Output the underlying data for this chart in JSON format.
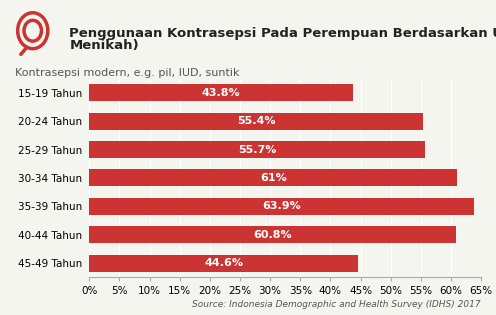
{
  "title_line1": "Penggunaan Kontrasepsi Pada Perempuan Berdasarkan Usia (Sudah",
  "title_line2": "Menikah)",
  "subtitle": "Kontrasepsi modern, e.g. pil, IUD, suntik",
  "source": "Source: Indonesia Demographic and Health Survey (IDHS) 2017",
  "categories": [
    "15-19 Tahun",
    "20-24 Tahun",
    "25-29 Tahun",
    "30-34 Tahun",
    "35-39 Tahun",
    "40-44 Tahun",
    "45-49 Tahun"
  ],
  "values": [
    43.8,
    55.4,
    55.7,
    61.0,
    63.9,
    60.8,
    44.6
  ],
  "labels": [
    "43.8%",
    "55.4%",
    "55.7%",
    "61%",
    "63.9%",
    "60.8%",
    "44.6%"
  ],
  "bar_color": "#cc3333",
  "bar_label_color": "#ffffff",
  "background_color": "#f5f5f0",
  "xlim": [
    0,
    65
  ],
  "xticks": [
    0,
    5,
    10,
    15,
    20,
    25,
    30,
    35,
    40,
    45,
    50,
    55,
    60,
    65
  ],
  "xtick_labels": [
    "0%",
    "5%",
    "10%",
    "15%",
    "20%",
    "25%",
    "30%",
    "35%",
    "40%",
    "45%",
    "50%",
    "55%",
    "60%",
    "65%"
  ],
  "title_fontsize": 9.5,
  "subtitle_fontsize": 8,
  "label_fontsize": 8,
  "tick_fontsize": 7.5,
  "source_fontsize": 6.5,
  "icon_color": "#cc3333"
}
